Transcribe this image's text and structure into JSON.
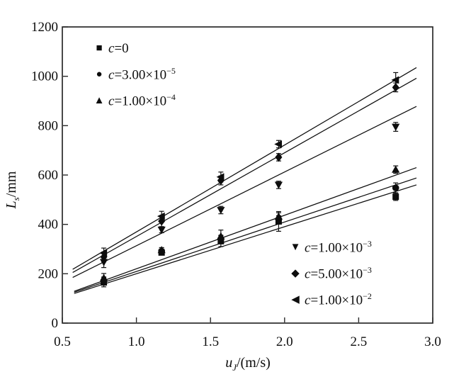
{
  "figure": {
    "background": "#ffffff",
    "frame_color": "#2a2a2a",
    "ink_color": "#0d0d0d"
  },
  "axes": {
    "x_title": {
      "var": "u",
      "sub": "J",
      "rest": "/(m/s)"
    },
    "y_title": {
      "var": "L",
      "sub": "s",
      "rest": "/mm"
    },
    "x_tick_labels": [
      "0.5",
      "1.0",
      "1.5",
      "2.0",
      "2.5",
      "3.0"
    ],
    "y_tick_labels": [
      "0",
      "200",
      "400",
      "600",
      "800",
      "1000",
      "1200"
    ]
  },
  "chart_data": {
    "type": "scatter",
    "title": "",
    "xlabel": "u_J/(m/s)",
    "ylabel": "L_s/mm",
    "xlim": [
      0.5,
      3.0
    ],
    "ylim": [
      0,
      1200
    ],
    "xticks": [
      0.5,
      1.0,
      1.5,
      2.0,
      2.5,
      3.0
    ],
    "yticks": [
      0,
      200,
      400,
      600,
      800,
      1000,
      1200
    ],
    "grid": false,
    "legend_position": "top-left and bottom-right, inside axes",
    "x": [
      0.78,
      1.17,
      1.57,
      1.96,
      2.75
    ],
    "series": [
      {
        "name": "c=0",
        "marker": "square",
        "values": [
          165,
          286,
          332,
          412,
          512
        ],
        "errors": [
          18,
          10,
          22,
          40,
          15
        ],
        "fit_line": {
          "x1": 0.58,
          "y1": 120,
          "x2": 2.89,
          "y2": 560
        }
      },
      {
        "name": "c=3.00×10⁻⁵",
        "marker": "circle",
        "values": [
          172,
          291,
          341,
          420,
          548
        ],
        "errors": [
          15,
          10,
          15,
          15,
          20
        ],
        "fit_line": {
          "x1": 0.58,
          "y1": 125,
          "x2": 2.89,
          "y2": 588
        }
      },
      {
        "name": "c=1.00×10⁻⁴",
        "marker": "triangle-up",
        "values": [
          183,
          296,
          352,
          432,
          622
        ],
        "errors": [
          18,
          10,
          25,
          15,
          15
        ],
        "fit_line": {
          "x1": 0.58,
          "y1": 129,
          "x2": 2.89,
          "y2": 630
        }
      },
      {
        "name": "c=1.00×10⁻³",
        "marker": "triangle-down",
        "values": [
          247,
          378,
          458,
          560,
          795
        ],
        "errors": [
          22,
          12,
          15,
          15,
          18
        ],
        "fit_line": {
          "x1": 0.57,
          "y1": 185,
          "x2": 2.89,
          "y2": 878
        }
      },
      {
        "name": "c=5.00×10⁻³",
        "marker": "diamond",
        "values": [
          268,
          413,
          578,
          672,
          955
        ],
        "errors": [
          20,
          22,
          18,
          15,
          18
        ],
        "fit_line": {
          "x1": 0.57,
          "y1": 205,
          "x2": 2.89,
          "y2": 992
        }
      },
      {
        "name": "c=1.00×10⁻²",
        "marker": "triangle-left",
        "values": [
          284,
          433,
          592,
          725,
          985
        ],
        "errors": [
          20,
          20,
          20,
          15,
          30
        ],
        "fit_line": {
          "x1": 0.57,
          "y1": 218,
          "x2": 2.89,
          "y2": 1035
        }
      }
    ],
    "legend": {
      "top": [
        {
          "glyph": "■",
          "marker_name": "square-marker-icon",
          "var": "c",
          "base": "=0",
          "exp": ""
        },
        {
          "glyph": "●",
          "marker_name": "circle-marker-icon",
          "var": "c",
          "base": "=3.00×10",
          "exp": "−5"
        },
        {
          "glyph": "▲",
          "marker_name": "triangle-up-marker-icon",
          "var": "c",
          "base": "=1.00×10",
          "exp": "−4"
        }
      ],
      "bottom": [
        {
          "glyph": "▼",
          "marker_name": "triangle-down-marker-icon",
          "var": "c",
          "base": "=1.00×10",
          "exp": "−3"
        },
        {
          "glyph": "◆",
          "marker_name": "diamond-marker-icon",
          "var": "c",
          "base": "=5.00×10",
          "exp": "−3"
        },
        {
          "glyph": "◀",
          "marker_name": "triangle-left-marker-icon",
          "var": "c",
          "base": "=1.00×10",
          "exp": "−2"
        }
      ]
    }
  }
}
